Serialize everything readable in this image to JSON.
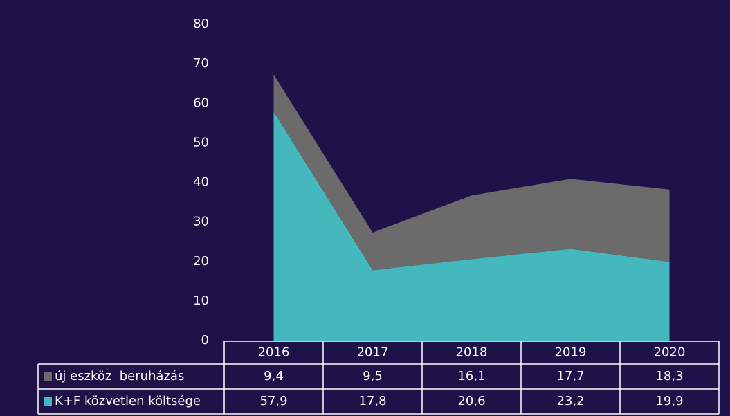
{
  "chart_data": {
    "type": "stacked_area",
    "categories": [
      "2016",
      "2017",
      "2018",
      "2019",
      "2020"
    ],
    "series": [
      {
        "name": "K+F közvetlen költsége",
        "color": "#45b8bd",
        "values": [
          57.9,
          17.8,
          20.6,
          23.2,
          19.9
        ],
        "value_labels": [
          "57,9",
          "17,8",
          "20,6",
          "23,2",
          "19,9"
        ]
      },
      {
        "name": "új eszköz  beruházás",
        "color": "#6b6b6b",
        "values": [
          9.4,
          9.5,
          16.1,
          17.7,
          18.3
        ],
        "value_labels": [
          "9,4",
          "9,5",
          "16,1",
          "17,7",
          "18,3"
        ]
      }
    ],
    "ylim": [
      0,
      80
    ],
    "yticks": [
      0,
      10,
      20,
      30,
      40,
      50,
      60,
      70,
      80
    ],
    "legend": "table"
  }
}
